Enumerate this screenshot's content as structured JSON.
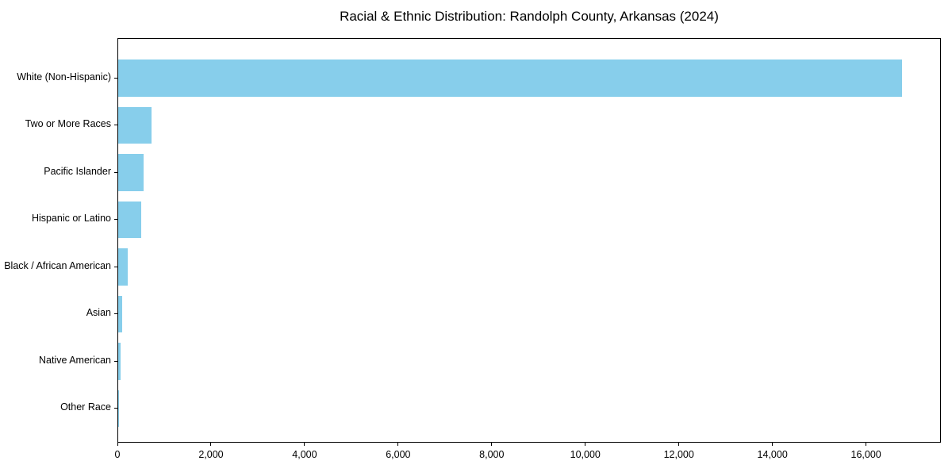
{
  "chart_data": {
    "type": "bar",
    "orientation": "horizontal",
    "title": "Racial & Ethnic Distribution: Randolph County, Arkansas (2024)",
    "categories": [
      "White (Non-Hispanic)",
      "Two or More Races",
      "Pacific Islander",
      "Hispanic or Latino",
      "Black / African American",
      "Asian",
      "Native American",
      "Other Race"
    ],
    "values": [
      16750,
      710,
      540,
      490,
      200,
      85,
      55,
      15
    ],
    "bar_color": "#87CEEB",
    "xlabel": "",
    "ylabel": "",
    "xlim": [
      0,
      17600
    ],
    "xticks": [
      0,
      2000,
      4000,
      6000,
      8000,
      10000,
      12000,
      14000,
      16000
    ],
    "xtick_labels": [
      "0",
      "2,000",
      "4,000",
      "6,000",
      "8,000",
      "10,000",
      "12,000",
      "14,000",
      "16,000"
    ],
    "grid": false,
    "legend": "none",
    "spine_color": "#000000",
    "text_color": "#000000",
    "background_color": "#ffffff"
  }
}
